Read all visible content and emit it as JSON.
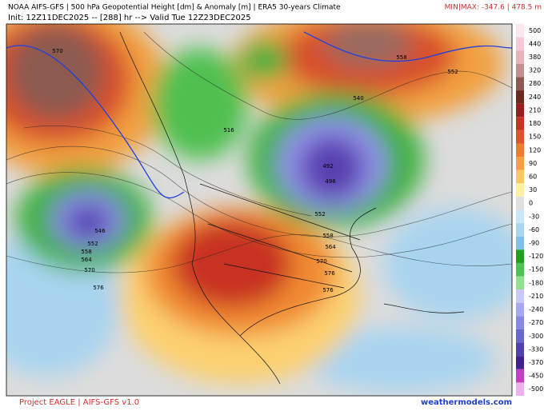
{
  "header": {
    "title": "NOAA AIFS-GFS | 500 hPa Geopotential Height [dm] & Anomaly [m] | ERA5 30-years Climate",
    "init": "Init: 12Z11DEC2025 -- [288] hr --> Valid Tue 12Z23DEC2025",
    "minmax": "MIN|MAX: -347.6 | 478.5 m"
  },
  "colorbar": {
    "labels": [
      "500",
      "440",
      "380",
      "320",
      "280",
      "240",
      "210",
      "180",
      "150",
      "120",
      "90",
      "60",
      "30",
      "0",
      "-30",
      "-60",
      "-90",
      "-120",
      "-150",
      "-180",
      "-210",
      "-240",
      "-270",
      "-300",
      "-330",
      "-370",
      "-450",
      "-500"
    ]
  },
  "contour_labels": [
    "570",
    "558",
    "552",
    "546",
    "552",
    "558",
    "564",
    "570",
    "576",
    "492",
    "498",
    "516",
    "540",
    "552",
    "558",
    "564",
    "570",
    "576",
    "576"
  ],
  "footer": {
    "left": "Project EAGLE | AIFS-GFS v1.0",
    "right": "weathermodels.com"
  }
}
